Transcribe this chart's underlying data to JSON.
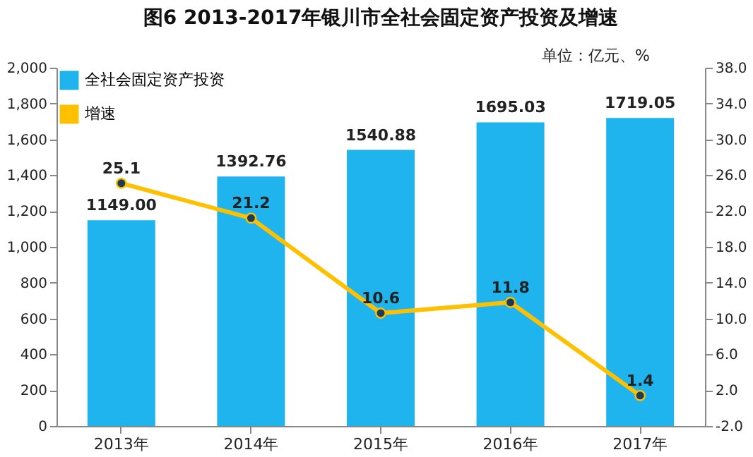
{
  "chart_data": {
    "type": "bar",
    "title": "图6   2013-2017年银川市全社会固定资产投资及增速",
    "categories": [
      "2013年",
      "2014年",
      "2015年",
      "2016年",
      "2017年"
    ],
    "series": [
      {
        "name": "全社会固定资产投资",
        "color": "#1fb4ee",
        "values": [
          1149.0,
          1392.76,
          1540.88,
          1695.03,
          1719.05
        ],
        "value_labels": [
          "1149.00",
          "1392.76",
          "1540.88",
          "1695.03",
          "1719.05"
        ]
      },
      {
        "name": "增速",
        "type": "line",
        "axis": "y2",
        "color": "#ffc000",
        "marker": "circle",
        "values": [
          25.1,
          21.2,
          10.6,
          11.8,
          1.4
        ]
      }
    ],
    "ylim": [
      0,
      2000
    ],
    "yticks": [
      0,
      {
        "value": 200,
        "label": "200"
      },
      {
        "value": 400,
        "label": "400"
      },
      {
        "value": 600,
        "label": "600"
      },
      {
        "value": 800,
        "label": "800"
      },
      {
        "value": 1000,
        "label": "1,000"
      },
      {
        "value": 1200,
        "label": "1,200"
      },
      {
        "value": 1400,
        "label": "1,400"
      },
      {
        "value": 1600,
        "label": "1,600"
      },
      {
        "value": 1800,
        "label": "1,800"
      },
      {
        "value": 2000,
        "label": "2,000"
      }
    ],
    "y2lim": [
      -2,
      38
    ],
    "y2ticks": [
      {
        "value": -2,
        "label": "-2.0"
      },
      {
        "value": 2,
        "label": "2.0"
      },
      {
        "value": 6,
        "label": "6.0"
      },
      {
        "value": 10,
        "label": "10.0"
      },
      {
        "value": 14,
        "label": "14.0"
      },
      {
        "value": 18,
        "label": "18.0"
      },
      {
        "value": 22,
        "label": "22.0"
      },
      {
        "value": 26,
        "label": "26.0"
      },
      {
        "value": 30,
        "label": "30.0"
      },
      {
        "value": 34,
        "label": "34.0"
      },
      {
        "value": 38,
        "label": "38.0"
      }
    ],
    "data_labels": true,
    "legend": "top left",
    "grid": false,
    "annotations": [
      "单位：亿元、%"
    ]
  }
}
